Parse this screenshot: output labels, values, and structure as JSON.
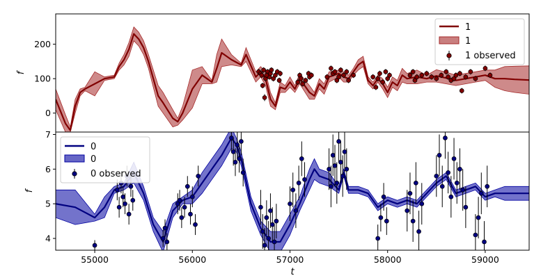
{
  "figure": {
    "xlabel": "t",
    "x_ticks": [
      55000,
      56000,
      57000,
      58000,
      59000
    ],
    "xlim": [
      54600,
      59450
    ]
  },
  "chart_data": [
    {
      "type": "line",
      "panel": "top",
      "ylabel": "f",
      "ylim": [
        -55,
        288
      ],
      "y_ticks": [
        0,
        100,
        200
      ],
      "grid": false,
      "legend_position": "top-right",
      "legend": {
        "line": "1",
        "band": "1",
        "observed": "1 observed"
      },
      "colors": {
        "line": "#800000",
        "band": "#a52a2a",
        "points": "#800000"
      },
      "model": {
        "x": [
          54600,
          54700,
          54750,
          54800,
          54850,
          54900,
          55000,
          55100,
          55200,
          55250,
          55300,
          55350,
          55400,
          55450,
          55500,
          55550,
          55600,
          55650,
          55700,
          55800,
          55850,
          55900,
          56000,
          56100,
          56200,
          56250,
          56300,
          56400,
          56500,
          56550,
          56650,
          56700,
          56750,
          56800,
          56850,
          56900,
          56950,
          57000,
          57050,
          57100,
          57200,
          57250,
          57300,
          57350,
          57400,
          57500,
          57550,
          57600,
          57650,
          57700,
          57750,
          57800,
          57850,
          57900,
          57950,
          58000,
          58050,
          58100,
          58150,
          58200,
          58300,
          58400,
          58500,
          58600,
          58700,
          58800,
          58900,
          59000,
          59100,
          59200,
          59300,
          59450
        ],
        "y": [
          40,
          -30,
          -50,
          20,
          60,
          70,
          85,
          100,
          105,
          135,
          155,
          185,
          230,
          215,
          190,
          150,
          100,
          50,
          30,
          -15,
          -25,
          0,
          70,
          110,
          90,
          130,
          175,
          155,
          140,
          170,
          105,
          120,
          100,
          40,
          20,
          75,
          70,
          90,
          70,
          100,
          60,
          50,
          85,
          70,
          105,
          115,
          105,
          100,
          120,
          140,
          150,
          95,
          80,
          100,
          85,
          60,
          90,
          80,
          110,
          100,
          105,
          100,
          108,
          102,
          95,
          100,
          105,
          110,
          100,
          100,
          98,
          96
        ],
        "band_low": [
          10,
          -55,
          -55,
          0,
          50,
          65,
          50,
          95,
          100,
          125,
          140,
          165,
          210,
          195,
          170,
          130,
          75,
          20,
          0,
          -40,
          -35,
          -20,
          15,
          85,
          85,
          90,
          135,
          140,
          135,
          150,
          90,
          105,
          80,
          20,
          10,
          60,
          60,
          75,
          60,
          85,
          40,
          40,
          70,
          55,
          90,
          105,
          90,
          90,
          110,
          125,
          135,
          85,
          70,
          90,
          70,
          45,
          75,
          65,
          90,
          85,
          85,
          90,
          90,
          85,
          80,
          85,
          90,
          95,
          75,
          65,
          60,
          55
        ],
        "band_high": [
          70,
          -5,
          -40,
          40,
          70,
          75,
          120,
          105,
          110,
          145,
          170,
          205,
          250,
          235,
          210,
          170,
          125,
          80,
          60,
          10,
          -15,
          20,
          125,
          135,
          95,
          170,
          215,
          170,
          145,
          190,
          120,
          135,
          120,
          60,
          30,
          90,
          80,
          105,
          80,
          115,
          80,
          60,
          100,
          85,
          120,
          125,
          120,
          110,
          130,
          155,
          165,
          105,
          90,
          110,
          100,
          75,
          105,
          95,
          130,
          115,
          125,
          110,
          126,
          119,
          110,
          115,
          120,
          125,
          125,
          135,
          136,
          137
        ]
      },
      "observed": {
        "x": [
          56680,
          56700,
          56710,
          56730,
          56750,
          56770,
          56790,
          56800,
          56810,
          56830,
          56850,
          56870,
          56890,
          56900,
          56720,
          56740,
          56760,
          57080,
          57100,
          57110,
          57130,
          57160,
          57190,
          57200,
          57220,
          57380,
          57420,
          57440,
          57460,
          57480,
          57500,
          57520,
          57550,
          57580,
          57600,
          57650,
          57850,
          57880,
          57900,
          57920,
          57950,
          57980,
          58000,
          58020,
          58230,
          58260,
          58280,
          58300,
          58350,
          58400,
          58450,
          58500,
          58550,
          58600,
          58620,
          58650,
          58680,
          58700,
          58740,
          58760,
          58800,
          58850,
          58900,
          59000,
          59050
        ],
        "y": [
          120,
          115,
          110,
          125,
          100,
          120,
          105,
          115,
          125,
          100,
          110,
          120,
          95,
          115,
          80,
          45,
          110,
          90,
          110,
          100,
          85,
          95,
          115,
          105,
          110,
          105,
          130,
          115,
          120,
          95,
          105,
          125,
          110,
          120,
          95,
          110,
          105,
          75,
          100,
          115,
          90,
          120,
          100,
          110,
          110,
          120,
          95,
          105,
          110,
          115,
          105,
          100,
          110,
          120,
          105,
          95,
          100,
          110,
          115,
          65,
          105,
          120,
          100,
          130,
          110
        ],
        "err": [
          8,
          8,
          8,
          8,
          8,
          8,
          8,
          8,
          8,
          8,
          8,
          8,
          8,
          8,
          8,
          10,
          8,
          8,
          8,
          8,
          8,
          8,
          8,
          8,
          8,
          8,
          8,
          8,
          8,
          8,
          8,
          8,
          8,
          8,
          8,
          8,
          8,
          8,
          8,
          8,
          8,
          8,
          8,
          8,
          8,
          8,
          8,
          8,
          8,
          8,
          8,
          8,
          8,
          8,
          8,
          8,
          8,
          8,
          8,
          8,
          8,
          8,
          8,
          8,
          8
        ]
      }
    },
    {
      "type": "line",
      "panel": "bottom",
      "ylabel": "f",
      "ylim": [
        3.66,
        7.07
      ],
      "y_ticks": [
        4,
        5,
        6,
        7
      ],
      "grid": false,
      "legend_position": "top-left",
      "legend": {
        "line": "0",
        "band": "0",
        "observed": "0 observed"
      },
      "colors": {
        "line": "#000080",
        "band": "#0000a0",
        "points": "#000080"
      },
      "model": {
        "x": [
          54600,
          54800,
          55000,
          55100,
          55200,
          55300,
          55400,
          55500,
          55600,
          55700,
          55800,
          55900,
          56000,
          56100,
          56200,
          56300,
          56400,
          56450,
          56500,
          56600,
          56700,
          56800,
          56900,
          57000,
          57100,
          57200,
          57250,
          57300,
          57400,
          57500,
          57550,
          57600,
          57700,
          57800,
          57900,
          58000,
          58100,
          58200,
          58300,
          58400,
          58500,
          58600,
          58700,
          58800,
          58900,
          59000,
          59100,
          59200,
          59300,
          59450
        ],
        "y": [
          5.0,
          4.9,
          4.6,
          4.9,
          5.4,
          5.5,
          5.9,
          5.3,
          4.4,
          3.9,
          4.8,
          5.1,
          5.2,
          5.6,
          6.0,
          6.4,
          6.9,
          6.7,
          6.3,
          5.0,
          4.3,
          3.9,
          3.9,
          4.4,
          5.0,
          5.7,
          6.0,
          5.8,
          5.7,
          5.4,
          5.9,
          5.4,
          5.4,
          5.3,
          4.9,
          5.1,
          5.0,
          5.1,
          5.0,
          5.3,
          5.6,
          5.8,
          5.3,
          5.4,
          5.5,
          5.2,
          5.3,
          5.3,
          5.3,
          5.3
        ],
        "band_low": [
          4.6,
          4.4,
          4.5,
          4.6,
          5.3,
          5.4,
          5.6,
          5.1,
          4.2,
          3.6,
          4.6,
          5.0,
          5.0,
          5.3,
          5.7,
          6.1,
          6.6,
          6.5,
          6.1,
          4.8,
          4.1,
          3.6,
          3.6,
          4.1,
          4.8,
          5.4,
          5.7,
          5.6,
          5.5,
          5.3,
          5.8,
          5.3,
          5.3,
          5.2,
          4.8,
          5.0,
          4.9,
          5.0,
          4.9,
          5.2,
          5.5,
          5.7,
          5.2,
          5.3,
          5.4,
          5.1,
          5.2,
          5.1,
          5.1,
          5.1
        ],
        "band_high": [
          5.4,
          5.4,
          4.7,
          5.2,
          5.5,
          5.6,
          6.2,
          5.5,
          4.6,
          4.2,
          5.0,
          5.2,
          5.4,
          5.9,
          6.3,
          6.7,
          7.2,
          6.9,
          6.5,
          5.2,
          4.5,
          4.2,
          4.2,
          4.7,
          5.2,
          6.0,
          6.3,
          6.0,
          5.9,
          5.5,
          6.0,
          5.5,
          5.5,
          5.4,
          5.0,
          5.2,
          5.1,
          5.2,
          5.1,
          5.4,
          5.7,
          5.9,
          5.4,
          5.5,
          5.6,
          5.3,
          5.4,
          5.5,
          5.5,
          5.5
        ]
      },
      "observed": {
        "x": [
          55000,
          55230,
          55250,
          55270,
          55290,
          55310,
          55330,
          55350,
          55370,
          55390,
          55700,
          55720,
          55740,
          55850,
          55870,
          55890,
          55920,
          55950,
          55980,
          56000,
          56030,
          56060,
          56400,
          56420,
          56440,
          56460,
          56480,
          56500,
          56520,
          56700,
          56720,
          56740,
          56760,
          56780,
          56800,
          56820,
          56840,
          56860,
          57000,
          57030,
          57060,
          57090,
          57120,
          57150,
          57400,
          57420,
          57440,
          57460,
          57480,
          57500,
          57520,
          57540,
          57560,
          57580,
          57900,
          57930,
          57960,
          57990,
          58200,
          58230,
          58260,
          58290,
          58320,
          58350,
          58500,
          58530,
          58560,
          58590,
          58620,
          58650,
          58680,
          58710,
          58740,
          58770,
          58800,
          58900,
          58930,
          58960,
          58990,
          59020
        ],
        "y": [
          3.8,
          5.4,
          4.9,
          5.6,
          5.2,
          5.0,
          5.8,
          4.7,
          5.5,
          5.1,
          4.0,
          4.3,
          3.9,
          5.0,
          5.1,
          4.6,
          4.9,
          5.5,
          4.7,
          5.2,
          4.4,
          5.8,
          6.9,
          6.5,
          6.2,
          6.7,
          6.3,
          6.8,
          5.9,
          4.9,
          4.2,
          3.8,
          4.6,
          4.0,
          4.8,
          4.4,
          3.9,
          4.5,
          5.0,
          5.4,
          4.8,
          5.6,
          6.3,
          5.7,
          6.0,
          5.5,
          6.4,
          6.1,
          5.6,
          6.8,
          6.2,
          5.8,
          6.5,
          6.0,
          4.0,
          4.6,
          5.2,
          4.5,
          4.8,
          5.3,
          4.5,
          5.6,
          4.2,
          5.0,
          5.8,
          6.4,
          5.5,
          6.9,
          5.9,
          5.2,
          6.3,
          5.6,
          6.0,
          5.4,
          4.9,
          4.1,
          4.6,
          5.3,
          3.9,
          5.5
        ],
        "err": [
          0.15,
          0.3,
          0.3,
          0.3,
          0.3,
          0.3,
          0.3,
          0.3,
          0.3,
          0.3,
          0.25,
          0.25,
          0.25,
          0.3,
          0.3,
          0.3,
          0.3,
          0.3,
          0.3,
          0.3,
          0.3,
          0.3,
          0.4,
          0.4,
          0.4,
          0.4,
          0.4,
          0.4,
          0.4,
          0.5,
          0.5,
          0.5,
          0.5,
          0.5,
          0.5,
          0.5,
          0.5,
          0.5,
          0.5,
          0.5,
          0.5,
          0.5,
          0.5,
          0.5,
          0.6,
          0.6,
          0.6,
          0.6,
          0.6,
          0.6,
          0.6,
          0.6,
          0.6,
          0.6,
          0.4,
          0.4,
          0.4,
          0.4,
          0.6,
          0.6,
          0.6,
          0.6,
          0.6,
          0.6,
          0.6,
          0.6,
          0.6,
          0.6,
          0.6,
          0.6,
          0.6,
          0.6,
          0.6,
          0.6,
          0.6,
          0.6,
          0.6,
          0.6,
          0.6,
          0.6
        ]
      }
    }
  ]
}
